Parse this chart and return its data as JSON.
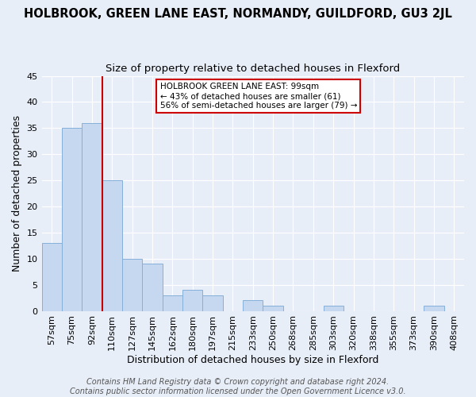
{
  "title": "HOLBROOK, GREEN LANE EAST, NORMANDY, GUILDFORD, GU3 2JL",
  "subtitle": "Size of property relative to detached houses in Flexford",
  "xlabel": "Distribution of detached houses by size in Flexford",
  "ylabel": "Number of detached properties",
  "categories": [
    "57sqm",
    "75sqm",
    "92sqm",
    "110sqm",
    "127sqm",
    "145sqm",
    "162sqm",
    "180sqm",
    "197sqm",
    "215sqm",
    "233sqm",
    "250sqm",
    "268sqm",
    "285sqm",
    "303sqm",
    "320sqm",
    "338sqm",
    "355sqm",
    "373sqm",
    "390sqm",
    "408sqm"
  ],
  "values": [
    13,
    35,
    36,
    25,
    10,
    9,
    3,
    4,
    3,
    0,
    2,
    1,
    0,
    0,
    1,
    0,
    0,
    0,
    0,
    1,
    0
  ],
  "bar_color": "#c5d8f0",
  "bar_edge_color": "#85b0d8",
  "vline_x": 2.5,
  "vline_color": "#cc0000",
  "annotation_text": "HOLBROOK GREEN LANE EAST: 99sqm\n← 43% of detached houses are smaller (61)\n56% of semi-detached houses are larger (79) →",
  "annotation_box_color": "#ffffff",
  "annotation_box_edge": "#cc0000",
  "ylim": [
    0,
    45
  ],
  "yticks": [
    0,
    5,
    10,
    15,
    20,
    25,
    30,
    35,
    40,
    45
  ],
  "footer": "Contains HM Land Registry data © Crown copyright and database right 2024.\nContains public sector information licensed under the Open Government Licence v3.0.",
  "bg_color": "#e8eef8",
  "grid_color": "#ffffff",
  "title_fontsize": 10.5,
  "subtitle_fontsize": 9.5,
  "axis_label_fontsize": 9,
  "tick_fontsize": 8,
  "footer_fontsize": 7
}
